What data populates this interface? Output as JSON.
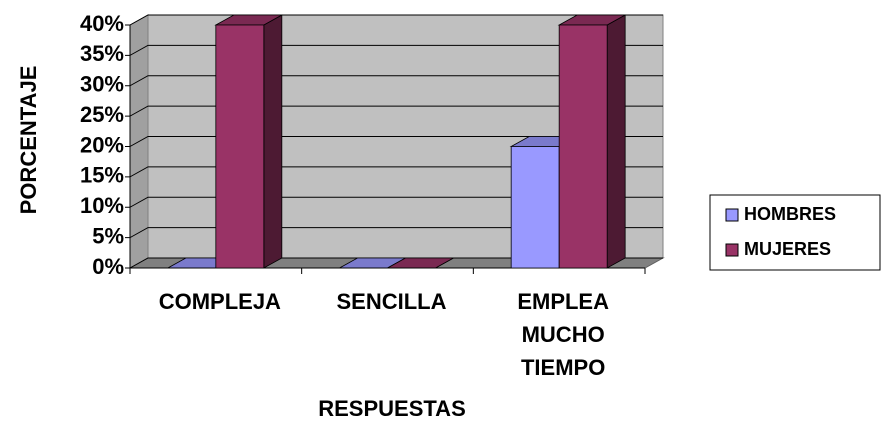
{
  "chart_data": {
    "type": "bar3d",
    "y_label": "PORCENTAJE",
    "x_label": "RESPUESTAS",
    "categories": [
      "COMPLEJA",
      "SENCILLA",
      "EMPLEA MUCHO TIEMPO"
    ],
    "series": [
      {
        "name": "HOMBRES",
        "color": "#9999ff",
        "values": [
          0,
          0,
          20
        ]
      },
      {
        "name": "MUJERES",
        "color": "#993366",
        "values": [
          40,
          0,
          40
        ]
      }
    ],
    "ylim": [
      0,
      40
    ],
    "yticks": [
      {
        "value": 0,
        "label": "0%"
      },
      {
        "value": 5,
        "label": "5%"
      },
      {
        "value": 10,
        "label": "10%"
      },
      {
        "value": 15,
        "label": "15%"
      },
      {
        "value": 20,
        "label": "20%"
      },
      {
        "value": 25,
        "label": "25%"
      },
      {
        "value": 30,
        "label": "30%"
      },
      {
        "value": 35,
        "label": "35%"
      },
      {
        "value": 40,
        "label": "40%"
      }
    ],
    "grid": true,
    "legend": "right"
  }
}
